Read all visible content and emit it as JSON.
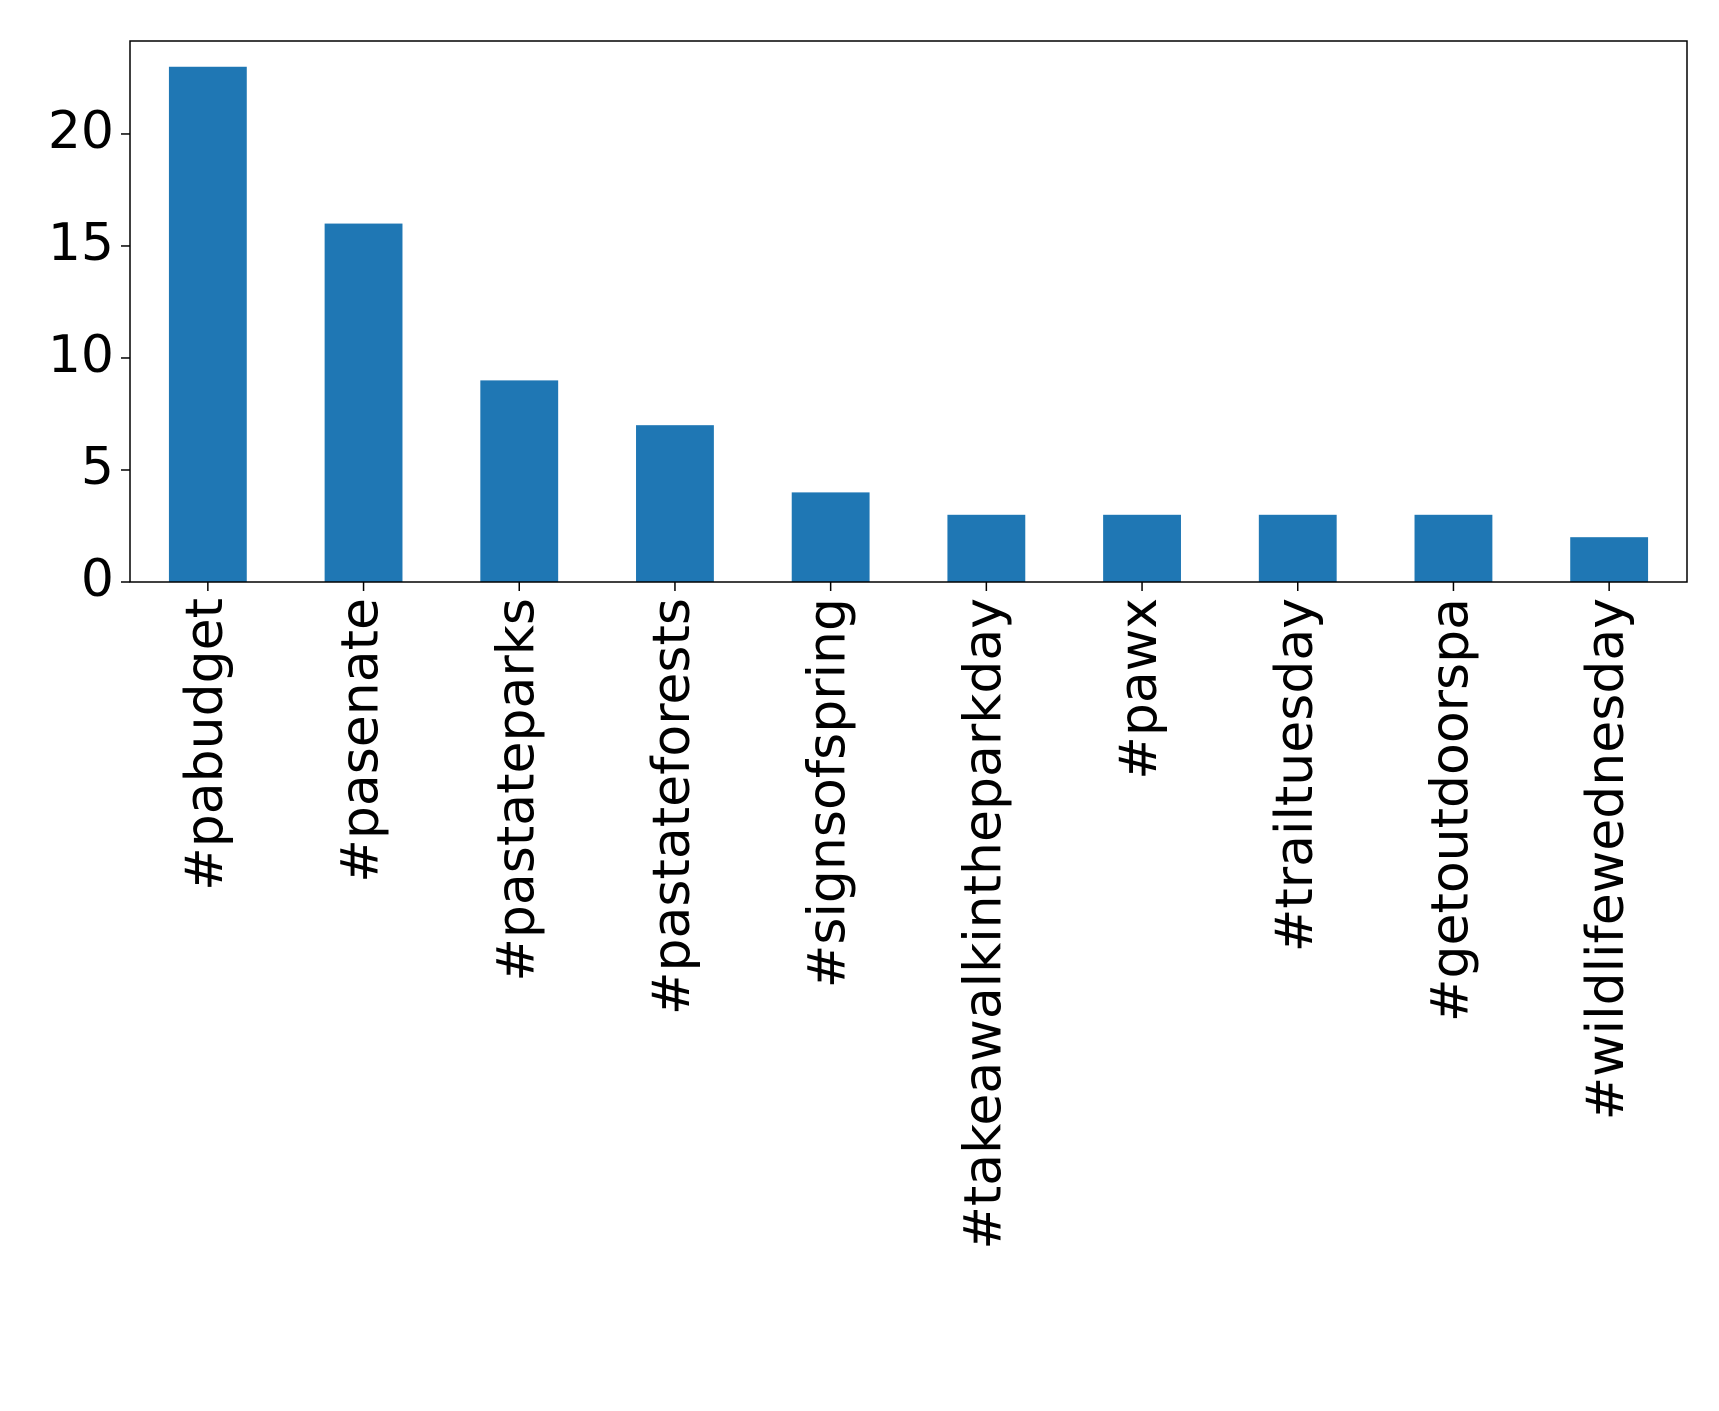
{
  "chart_data": {
    "type": "bar",
    "categories": [
      "#pabudget",
      "#pasenate",
      "#pastateparks",
      "#pastateforests",
      "#signsofspring",
      "#takeawalkintheparkday",
      "#pawx",
      "#trailtuesday",
      "#getoutdoorspa",
      "#wildlifewednesday"
    ],
    "values": [
      23,
      16,
      9,
      7,
      4,
      3,
      3,
      3,
      3,
      2
    ],
    "color": "#1f77b4",
    "ylim": [
      0,
      24.15
    ],
    "yticks": [
      0,
      5,
      10,
      15,
      20
    ],
    "grid": false
  }
}
